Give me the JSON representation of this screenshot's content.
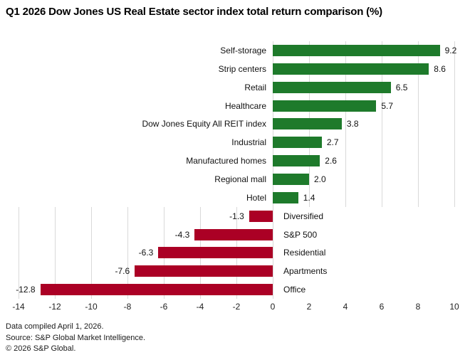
{
  "title": "Q1 2026 Dow Jones US Real Estate sector index total return comparison (%)",
  "footer": {
    "line1": "Data compiled April 1, 2026.",
    "line2": "Source: S&P Global Market Intelligence.",
    "line3": "© 2026 S&P Global."
  },
  "colors": {
    "positive_bar": "#1e7a2b",
    "negative_bar": "#ab0025",
    "gridline": "#d9d9d9"
  },
  "chart_data": {
    "type": "bar",
    "orientation": "horizontal",
    "title": "Q1 2026 Dow Jones US Real Estate sector index total return comparison (%)",
    "categories": [
      "Self-storage",
      "Strip centers",
      "Retail",
      "Healthcare",
      "Dow Jones Equity All REIT index",
      "Industrial",
      "Manufactured homes",
      "Regional mall",
      "Hotel",
      "Diversified",
      "S&P 500",
      "Residential",
      "Apartments",
      "Office"
    ],
    "values": [
      9.2,
      8.6,
      6.5,
      5.7,
      3.8,
      2.7,
      2.6,
      2.0,
      1.4,
      -1.3,
      -4.3,
      -6.3,
      -7.6,
      -12.8
    ],
    "value_labels": [
      "9.2",
      "8.6",
      "6.5",
      "5.7",
      "3.8",
      "2.7",
      "2.6",
      "2.0",
      "1.4",
      "-1.3",
      "-4.3",
      "-6.3",
      "-7.6",
      "-12.8"
    ],
    "xlabel": "",
    "ylabel": "",
    "xlim": [
      -14,
      10
    ],
    "x_ticks": [
      -14,
      -12,
      -10,
      -8,
      -6,
      -4,
      -2,
      0,
      2,
      4,
      6,
      8,
      10
    ],
    "grid": "vertical-only, clipped to bar regions",
    "legend": "none"
  }
}
